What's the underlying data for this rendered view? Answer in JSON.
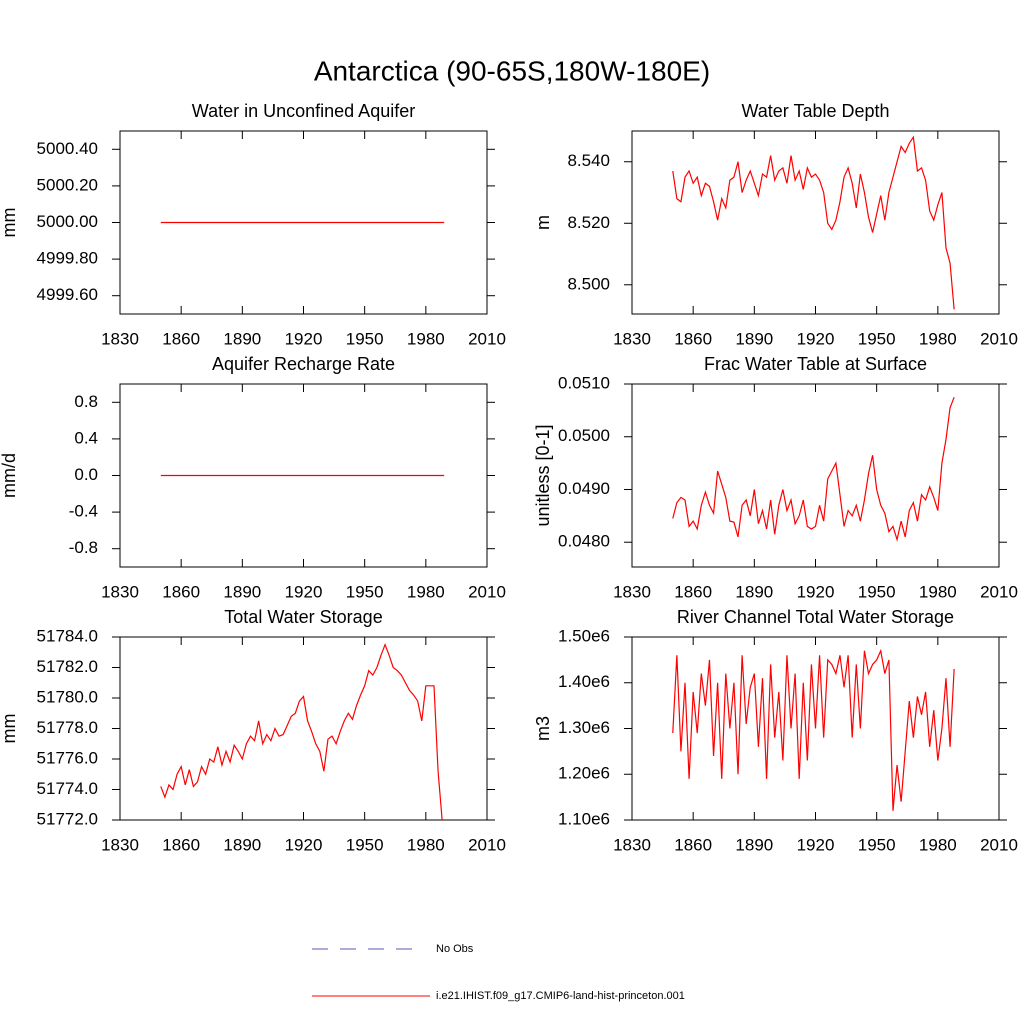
{
  "title": "Antarctica (90-65S,180W-180E)",
  "legend": [
    {
      "name": "No Obs",
      "color": "#5a5ab4",
      "dashed": true
    },
    {
      "name": "i.e21.IHIST.f09_g17.CMIP6-land-hist-princeton.001",
      "color": "#ff0000",
      "dashed": false
    }
  ],
  "chart_data": [
    {
      "type": "line",
      "title": "Water in Unconfined Aquifer",
      "y_label": "mm",
      "color": "#ff0000",
      "x": [
        1850,
        1989
      ],
      "values": [
        5000.0,
        5000.0
      ],
      "xlim": [
        1830,
        2010
      ],
      "xticks": [
        1830,
        1860,
        1890,
        1920,
        1950,
        1980,
        2010
      ],
      "ylim": [
        4999.5,
        5000.5
      ],
      "yticks": [
        {
          "value": 4999.6,
          "label": "4999.60"
        },
        {
          "value": 4999.8,
          "label": "4999.80"
        },
        {
          "value": 5000.0,
          "label": "5000.00"
        },
        {
          "value": 5000.2,
          "label": "5000.20"
        },
        {
          "value": 5000.4,
          "label": "5000.40"
        }
      ]
    },
    {
      "type": "line",
      "title": "Water Table Depth",
      "y_label": "m",
      "color": "#ff0000",
      "x": [
        1850,
        1852,
        1854,
        1856,
        1858,
        1860,
        1862,
        1864,
        1866,
        1868,
        1870,
        1872,
        1874,
        1876,
        1878,
        1880,
        1882,
        1884,
        1886,
        1888,
        1890,
        1892,
        1894,
        1896,
        1898,
        1900,
        1902,
        1904,
        1906,
        1908,
        1910,
        1912,
        1914,
        1916,
        1918,
        1920,
        1922,
        1924,
        1926,
        1928,
        1930,
        1932,
        1934,
        1936,
        1938,
        1940,
        1942,
        1944,
        1946,
        1948,
        1950,
        1952,
        1954,
        1956,
        1958,
        1960,
        1962,
        1964,
        1966,
        1968,
        1970,
        1972,
        1974,
        1976,
        1978,
        1980,
        1982,
        1984,
        1986,
        1988
      ],
      "values": [
        8.537,
        8.528,
        8.527,
        8.535,
        8.537,
        8.533,
        8.535,
        8.529,
        8.533,
        8.532,
        8.527,
        8.521,
        8.528,
        8.525,
        8.534,
        8.535,
        8.54,
        8.53,
        8.534,
        8.537,
        8.533,
        8.529,
        8.536,
        8.535,
        8.542,
        8.534,
        8.537,
        8.538,
        8.533,
        8.542,
        8.534,
        8.537,
        8.531,
        8.538,
        8.535,
        8.536,
        8.534,
        8.53,
        8.52,
        8.518,
        8.521,
        8.527,
        8.535,
        8.538,
        8.533,
        8.525,
        8.536,
        8.53,
        8.522,
        8.517,
        8.523,
        8.529,
        8.521,
        8.53,
        8.535,
        8.54,
        8.545,
        8.543,
        8.546,
        8.548,
        8.537,
        8.538,
        8.534,
        8.524,
        8.521,
        8.526,
        8.53,
        8.512,
        8.507,
        8.492
      ],
      "xlim": [
        1830,
        2010
      ],
      "xticks": [
        1830,
        1860,
        1890,
        1920,
        1950,
        1980,
        2010
      ],
      "ylim": [
        8.4905,
        8.55
      ],
      "yticks": [
        {
          "value": 8.5,
          "label": "8.500"
        },
        {
          "value": 8.52,
          "label": "8.520"
        },
        {
          "value": 8.54,
          "label": "8.540"
        }
      ]
    },
    {
      "type": "line",
      "title": "Aquifer Recharge Rate",
      "y_label": "mm/d",
      "color": "#ff0000",
      "x": [
        1850,
        1989
      ],
      "values": [
        0,
        0
      ],
      "xlim": [
        1830,
        2010
      ],
      "xticks": [
        1830,
        1860,
        1890,
        1920,
        1950,
        1980,
        2010
      ],
      "ylim": [
        -1,
        1
      ],
      "yticks": [
        -0.8,
        -0.4,
        {
          "value": 0,
          "label": "0.0"
        },
        0.4,
        0.8
      ]
    },
    {
      "type": "line",
      "title": "Frac Water Table at Surface",
      "y_label": "unitless [0-1]",
      "color": "#ff0000",
      "x": [
        1850,
        1852,
        1854,
        1856,
        1858,
        1860,
        1862,
        1864,
        1866,
        1868,
        1870,
        1872,
        1874,
        1876,
        1878,
        1880,
        1882,
        1884,
        1886,
        1888,
        1890,
        1892,
        1894,
        1896,
        1898,
        1900,
        1902,
        1904,
        1906,
        1908,
        1910,
        1912,
        1914,
        1916,
        1918,
        1920,
        1922,
        1924,
        1926,
        1928,
        1930,
        1932,
        1934,
        1936,
        1938,
        1940,
        1942,
        1944,
        1946,
        1948,
        1950,
        1952,
        1954,
        1956,
        1958,
        1960,
        1962,
        1964,
        1966,
        1968,
        1970,
        1972,
        1974,
        1976,
        1978,
        1980,
        1982,
        1984,
        1986,
        1988
      ],
      "values": [
        0.04845,
        0.04875,
        0.04885,
        0.0488,
        0.0483,
        0.0484,
        0.04825,
        0.0487,
        0.04895,
        0.0487,
        0.04855,
        0.04935,
        0.0491,
        0.04885,
        0.0484,
        0.04838,
        0.0481,
        0.0487,
        0.0488,
        0.0485,
        0.049,
        0.04835,
        0.0486,
        0.04825,
        0.0488,
        0.04815,
        0.0487,
        0.049,
        0.0486,
        0.0488,
        0.04835,
        0.0485,
        0.0488,
        0.0483,
        0.04825,
        0.0483,
        0.0487,
        0.0484,
        0.0492,
        0.04935,
        0.0495,
        0.0489,
        0.0483,
        0.0486,
        0.0485,
        0.0487,
        0.0484,
        0.0488,
        0.0493,
        0.04965,
        0.049,
        0.0487,
        0.04855,
        0.0482,
        0.0483,
        0.04805,
        0.0484,
        0.0481,
        0.0486,
        0.04875,
        0.0484,
        0.0489,
        0.0488,
        0.04905,
        0.04885,
        0.0486,
        0.0495,
        0.04995,
        0.05055,
        0.05075
      ],
      "xlim": [
        1830,
        2010
      ],
      "xticks": [
        1830,
        1860,
        1890,
        1920,
        1950,
        1980,
        2010
      ],
      "ylim": [
        0.04753,
        0.051
      ],
      "yticks": [
        {
          "value": 0.048,
          "label": "0.0480"
        },
        {
          "value": 0.049,
          "label": "0.0490"
        },
        {
          "value": 0.05,
          "label": "0.0500"
        },
        {
          "value": 0.051,
          "label": "0.0510"
        }
      ]
    },
    {
      "type": "line",
      "title": "Total Water Storage",
      "y_label": "mm",
      "color": "#ff0000",
      "x": [
        1850,
        1852,
        1854,
        1856,
        1858,
        1860,
        1862,
        1864,
        1866,
        1868,
        1870,
        1872,
        1874,
        1876,
        1878,
        1880,
        1882,
        1884,
        1886,
        1888,
        1890,
        1892,
        1894,
        1896,
        1898,
        1900,
        1902,
        1904,
        1906,
        1908,
        1910,
        1912,
        1914,
        1916,
        1918,
        1920,
        1922,
        1924,
        1926,
        1928,
        1930,
        1932,
        1934,
        1936,
        1938,
        1940,
        1942,
        1944,
        1946,
        1948,
        1950,
        1952,
        1954,
        1956,
        1958,
        1960,
        1962,
        1964,
        1966,
        1968,
        1970,
        1972,
        1974,
        1976,
        1978,
        1980,
        1982,
        1984,
        1986,
        1988
      ],
      "values": [
        51774.2,
        51773.5,
        51774.3,
        51774.0,
        51775.0,
        51775.5,
        51774.3,
        51775.3,
        51774.2,
        51774.5,
        51775.5,
        51775.0,
        51776.0,
        51775.8,
        51776.8,
        51775.6,
        51776.5,
        51775.8,
        51776.9,
        51776.5,
        51776.0,
        51777.0,
        51777.5,
        51777.2,
        51778.5,
        51777.0,
        51777.6,
        51777.2,
        51778.0,
        51777.5,
        51777.6,
        51778.2,
        51778.8,
        51779.0,
        51779.8,
        51780.1,
        51778.5,
        51777.8,
        51777.0,
        51776.5,
        51775.2,
        51777.3,
        51777.5,
        51777.0,
        51777.8,
        51778.5,
        51779.0,
        51778.6,
        51779.5,
        51780.2,
        51780.8,
        51781.8,
        51781.5,
        51782.0,
        51782.8,
        51783.5,
        51782.8,
        51782.0,
        51781.8,
        51781.5,
        51781.0,
        51780.5,
        51780.2,
        51779.8,
        51778.5,
        51780.8,
        51780.8,
        51780.8,
        51775.2,
        51772.0
      ],
      "xlim": [
        1830,
        2010
      ],
      "xticks": [
        1830,
        1860,
        1890,
        1920,
        1950,
        1980,
        2010
      ],
      "ylim": [
        51772,
        51784
      ],
      "yticks": [
        {
          "value": 51772,
          "label": "51772.0"
        },
        {
          "value": 51774,
          "label": "51774.0"
        },
        {
          "value": 51776,
          "label": "51776.0"
        },
        {
          "value": 51778,
          "label": "51778.0"
        },
        {
          "value": 51780,
          "label": "51780.0"
        },
        {
          "value": 51782,
          "label": "51782.0"
        },
        {
          "value": 51784,
          "label": "51784.0"
        }
      ]
    },
    {
      "type": "line",
      "title": "River Channel Total Water Storage",
      "y_label": "m3",
      "color": "#ff0000",
      "x": [
        1850,
        1852,
        1854,
        1856,
        1858,
        1860,
        1862,
        1864,
        1866,
        1868,
        1870,
        1872,
        1874,
        1876,
        1878,
        1880,
        1882,
        1884,
        1886,
        1888,
        1890,
        1892,
        1894,
        1896,
        1898,
        1900,
        1902,
        1904,
        1906,
        1908,
        1910,
        1912,
        1914,
        1916,
        1918,
        1920,
        1922,
        1924,
        1926,
        1928,
        1930,
        1932,
        1934,
        1936,
        1938,
        1940,
        1942,
        1944,
        1946,
        1948,
        1950,
        1952,
        1954,
        1956,
        1958,
        1960,
        1962,
        1964,
        1966,
        1968,
        1970,
        1972,
        1974,
        1976,
        1978,
        1980,
        1982,
        1984,
        1986,
        1988
      ],
      "values": [
        1290000,
        1460000,
        1250000,
        1400000,
        1190000,
        1380000,
        1290000,
        1420000,
        1350000,
        1450000,
        1240000,
        1400000,
        1190000,
        1420000,
        1300000,
        1400000,
        1200000,
        1460000,
        1310000,
        1390000,
        1420000,
        1260000,
        1410000,
        1190000,
        1440000,
        1280000,
        1380000,
        1230000,
        1460000,
        1300000,
        1420000,
        1190000,
        1400000,
        1230000,
        1440000,
        1300000,
        1460000,
        1280000,
        1450000,
        1440000,
        1420000,
        1460000,
        1390000,
        1460000,
        1280000,
        1440000,
        1300000,
        1470000,
        1420000,
        1440000,
        1450000,
        1470000,
        1420000,
        1450000,
        1120000,
        1220000,
        1140000,
        1250000,
        1360000,
        1280000,
        1370000,
        1330000,
        1380000,
        1260000,
        1340000,
        1230000,
        1300000,
        1410000,
        1260000,
        1430000
      ],
      "xlim": [
        1830,
        2010
      ],
      "xticks": [
        1830,
        1860,
        1890,
        1920,
        1950,
        1980,
        2010
      ],
      "ylim": [
        1100000,
        1500000
      ],
      "yticks": [
        {
          "value": 1100000,
          "label": "1.10e6"
        },
        {
          "value": 1200000,
          "label": "1.20e6"
        },
        {
          "value": 1300000,
          "label": "1.30e6"
        },
        {
          "value": 1400000,
          "label": "1.40e6"
        },
        {
          "value": 1500000,
          "label": "1.50e6"
        }
      ]
    }
  ]
}
